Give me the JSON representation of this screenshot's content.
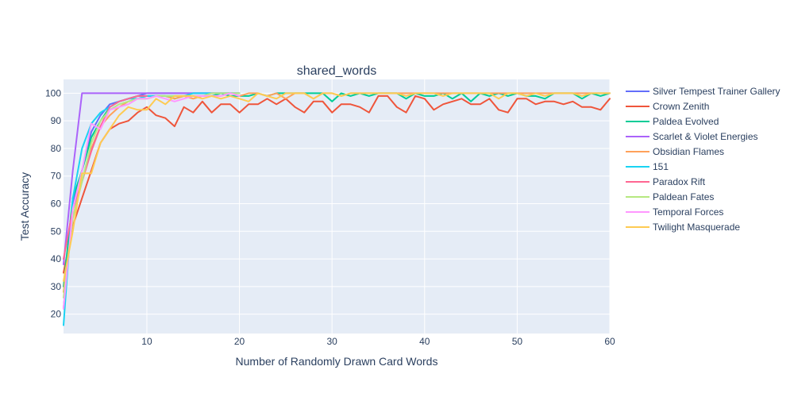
{
  "chart_data": {
    "type": "line",
    "title": "shared_words",
    "xlabel": "Number of Randomly Drawn Card Words",
    "ylabel": "Test Accuracy",
    "xlim": [
      1,
      60
    ],
    "ylim": [
      13,
      105
    ],
    "x_ticks": [
      10,
      20,
      30,
      40,
      50,
      60
    ],
    "y_ticks": [
      20,
      30,
      40,
      50,
      60,
      70,
      80,
      90,
      100
    ],
    "grid": true,
    "legend_position": "right",
    "series": [
      {
        "name": "Silver Tempest Trainer Gallery",
        "color": "#636efa",
        "x": [
          1,
          2,
          3,
          4,
          5,
          6,
          7,
          8,
          9,
          10,
          11,
          12,
          13,
          14,
          15,
          16,
          17,
          18,
          19,
          20
        ],
        "y": [
          22,
          60,
          72,
          86,
          92,
          96,
          97,
          98,
          99,
          100,
          100,
          100,
          100,
          100,
          100,
          100,
          100,
          100,
          100,
          100
        ]
      },
      {
        "name": "Crown Zenith",
        "color": "#EF553B",
        "x": [
          1,
          2,
          3,
          4,
          5,
          6,
          7,
          8,
          9,
          10,
          11,
          12,
          13,
          14,
          15,
          16,
          17,
          18,
          19,
          20,
          21,
          22,
          23,
          24,
          25,
          26,
          27,
          28,
          29,
          30,
          31,
          32,
          33,
          34,
          35,
          36,
          37,
          38,
          39,
          40,
          41,
          42,
          43,
          44,
          45,
          46,
          47,
          48,
          49,
          50,
          51,
          52,
          53,
          54,
          55,
          56,
          57,
          58,
          59,
          60
        ],
        "y": [
          35,
          52,
          62,
          72,
          82,
          87,
          89,
          90,
          93,
          95,
          92,
          91,
          88,
          95,
          93,
          97,
          93,
          96,
          96,
          93,
          96,
          96,
          98,
          96,
          98,
          95,
          93,
          97,
          97,
          93,
          96,
          96,
          95,
          93,
          99,
          99,
          95,
          93,
          99,
          98,
          94,
          96,
          97,
          98,
          96,
          96,
          98,
          94,
          93,
          98,
          98,
          96,
          97,
          97,
          96,
          97,
          95,
          95,
          94,
          98
        ]
      },
      {
        "name": "Paldea Evolved",
        "color": "#00cc96",
        "x": [
          1,
          2,
          3,
          4,
          5,
          6,
          7,
          8,
          9,
          10,
          11,
          12,
          13,
          14,
          15,
          16,
          17,
          18,
          19,
          20,
          21,
          22,
          23,
          24,
          25,
          26,
          27,
          28,
          29,
          30,
          31,
          32,
          33,
          34,
          35,
          36,
          37,
          38,
          39,
          40,
          41,
          42,
          43,
          44,
          45,
          46,
          47,
          48,
          49,
          50,
          51,
          52,
          53,
          54,
          55,
          56,
          57,
          58,
          59,
          60
        ],
        "y": [
          30,
          62,
          72,
          84,
          90,
          95,
          97,
          98,
          99,
          99,
          99,
          99,
          98,
          99,
          99,
          99,
          99,
          100,
          99,
          99,
          99,
          100,
          99,
          100,
          100,
          100,
          100,
          100,
          100,
          97,
          100,
          99,
          100,
          99,
          100,
          100,
          100,
          98,
          100,
          99,
          99,
          100,
          98,
          100,
          97,
          100,
          99,
          100,
          99,
          100,
          99,
          99,
          98,
          100,
          100,
          100,
          98,
          100,
          99,
          100
        ]
      },
      {
        "name": "Scarlet & Violet Energies",
        "color": "#ab63fa",
        "x": [
          1,
          2,
          3,
          4,
          5,
          6,
          7,
          8,
          9,
          10,
          11,
          12,
          13,
          14,
          15,
          16,
          17,
          18,
          19,
          20
        ],
        "y": [
          38,
          72,
          100,
          100,
          100,
          100,
          100,
          100,
          100,
          100,
          100,
          100,
          100,
          100,
          100,
          100,
          100,
          100,
          100,
          100
        ]
      },
      {
        "name": "Obsidian Flames",
        "color": "#FFA15A",
        "x": [
          1,
          2,
          3,
          4,
          5,
          6,
          7,
          8,
          9,
          10,
          11,
          12,
          13,
          14,
          15,
          16,
          17,
          18,
          19,
          20,
          21,
          22,
          23,
          24,
          25,
          26,
          27,
          28,
          29,
          30,
          31,
          32,
          33,
          34,
          35,
          36,
          37,
          38,
          39,
          40,
          41,
          42,
          43,
          44,
          45,
          46,
          47,
          48,
          49,
          50,
          51,
          52,
          53,
          54,
          55,
          56,
          57,
          58,
          59,
          60
        ],
        "y": [
          28,
          55,
          68,
          80,
          88,
          92,
          95,
          97,
          98,
          98,
          99,
          99,
          98,
          99,
          98,
          99,
          99,
          99,
          100,
          99,
          100,
          100,
          99,
          100,
          98,
          100,
          100,
          98,
          100,
          100,
          99,
          100,
          100,
          100,
          100,
          100,
          100,
          100,
          100,
          100,
          100,
          100,
          100,
          100,
          100,
          100,
          100,
          100,
          100,
          100,
          100,
          100,
          100,
          100,
          100,
          100,
          100,
          100,
          100,
          100
        ]
      },
      {
        "name": "151",
        "color": "#19d3f3",
        "x": [
          1,
          2,
          3,
          4,
          5,
          6,
          7,
          8,
          9,
          10,
          11,
          12,
          13,
          14,
          15,
          16,
          17,
          18,
          19,
          20
        ],
        "y": [
          16,
          62,
          80,
          89,
          93,
          95,
          97,
          98,
          98,
          99,
          99,
          99,
          99,
          99,
          100,
          100,
          100,
          100,
          100,
          100
        ]
      },
      {
        "name": "Paradox Rift",
        "color": "#FF6692",
        "x": [
          1,
          2,
          3,
          4,
          5,
          6,
          7,
          8,
          9,
          10
        ],
        "y": [
          40,
          58,
          68,
          79,
          88,
          95,
          97,
          98,
          99,
          99
        ]
      },
      {
        "name": "Paldean Fates",
        "color": "#B6E880",
        "x": [
          1,
          2,
          3,
          4,
          5,
          6,
          7,
          8,
          9,
          10,
          11,
          12,
          13,
          14,
          15,
          16,
          17,
          18,
          19,
          20
        ],
        "y": [
          26,
          55,
          68,
          82,
          90,
          94,
          96,
          97,
          98,
          98,
          99,
          99,
          99,
          99,
          99,
          99,
          100,
          100,
          100,
          100
        ]
      },
      {
        "name": "Temporal Forces",
        "color": "#FF97FF",
        "x": [
          1,
          2,
          3,
          4,
          5,
          6,
          7,
          8,
          9,
          10,
          11,
          12,
          13,
          14,
          15,
          16,
          17,
          18,
          19,
          20
        ],
        "y": [
          22,
          58,
          72,
          89,
          87,
          94,
          95,
          96,
          98,
          98,
          99,
          98,
          97,
          98,
          99,
          99,
          99,
          99,
          100,
          99
        ]
      },
      {
        "name": "Twilight Masquerade",
        "color": "#FECB52",
        "x": [
          1,
          2,
          3,
          4,
          5,
          6,
          7,
          8,
          9,
          10,
          11,
          12,
          13,
          14,
          15,
          16,
          17,
          18,
          19,
          20,
          21,
          22,
          23,
          24,
          25,
          26,
          27,
          28,
          29,
          30,
          31,
          32,
          33,
          34,
          35,
          36,
          37,
          38,
          39,
          40,
          41,
          42,
          43,
          44,
          45,
          46,
          47,
          48,
          49,
          50,
          51,
          52,
          53,
          54,
          55,
          56,
          57,
          58,
          59,
          60
        ],
        "y": [
          32,
          50,
          71,
          71,
          82,
          87,
          92,
          95,
          94,
          94,
          98,
          96,
          99,
          99,
          99,
          98,
          99,
          98,
          99,
          98,
          97,
          100,
          99,
          98,
          100,
          100,
          100,
          98,
          100,
          100,
          99,
          100,
          100,
          100,
          100,
          100,
          100,
          99,
          100,
          100,
          100,
          99,
          100,
          100,
          100,
          100,
          100,
          98,
          100,
          100,
          99,
          100,
          99,
          100,
          100,
          100,
          99,
          100,
          100,
          100
        ]
      }
    ]
  }
}
